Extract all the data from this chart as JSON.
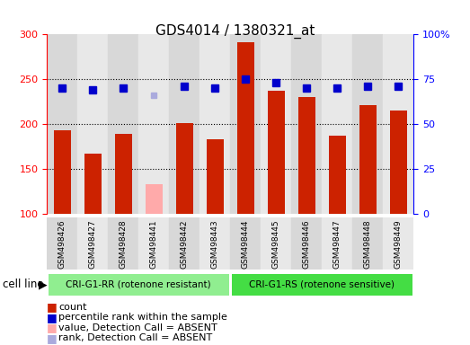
{
  "title": "GDS4014 / 1380321_at",
  "samples": [
    "GSM498426",
    "GSM498427",
    "GSM498428",
    "GSM498441",
    "GSM498442",
    "GSM498443",
    "GSM498444",
    "GSM498445",
    "GSM498446",
    "GSM498447",
    "GSM498448",
    "GSM498449"
  ],
  "counts": [
    193,
    167,
    189,
    null,
    201,
    183,
    291,
    237,
    230,
    187,
    221,
    215
  ],
  "absent_counts": [
    null,
    null,
    null,
    133,
    null,
    null,
    null,
    null,
    null,
    null,
    null,
    null
  ],
  "percentile_ranks": [
    70,
    69,
    70,
    null,
    71,
    70,
    75,
    73,
    70,
    70,
    71,
    71
  ],
  "absent_ranks": [
    null,
    null,
    null,
    66,
    null,
    null,
    null,
    null,
    null,
    null,
    null,
    null
  ],
  "groups": [
    {
      "label": "CRI-G1-RR (rotenone resistant)",
      "start": 0,
      "end": 5,
      "color": "#90ee90"
    },
    {
      "label": "CRI-G1-RS (rotenone sensitive)",
      "start": 6,
      "end": 11,
      "color": "#00cc00"
    }
  ],
  "ymin": 100,
  "ymax": 300,
  "yticks": [
    100,
    150,
    200,
    250,
    300
  ],
  "y2min": 0,
  "y2max": 100,
  "y2ticks": [
    0,
    25,
    50,
    75,
    100
  ],
  "bar_color": "#cc2200",
  "absent_bar_color": "#ffaaaa",
  "rank_color": "#0000cc",
  "absent_rank_color": "#aaaadd",
  "bg_color": "#e8e8e8",
  "cell_line_label": "cell line"
}
